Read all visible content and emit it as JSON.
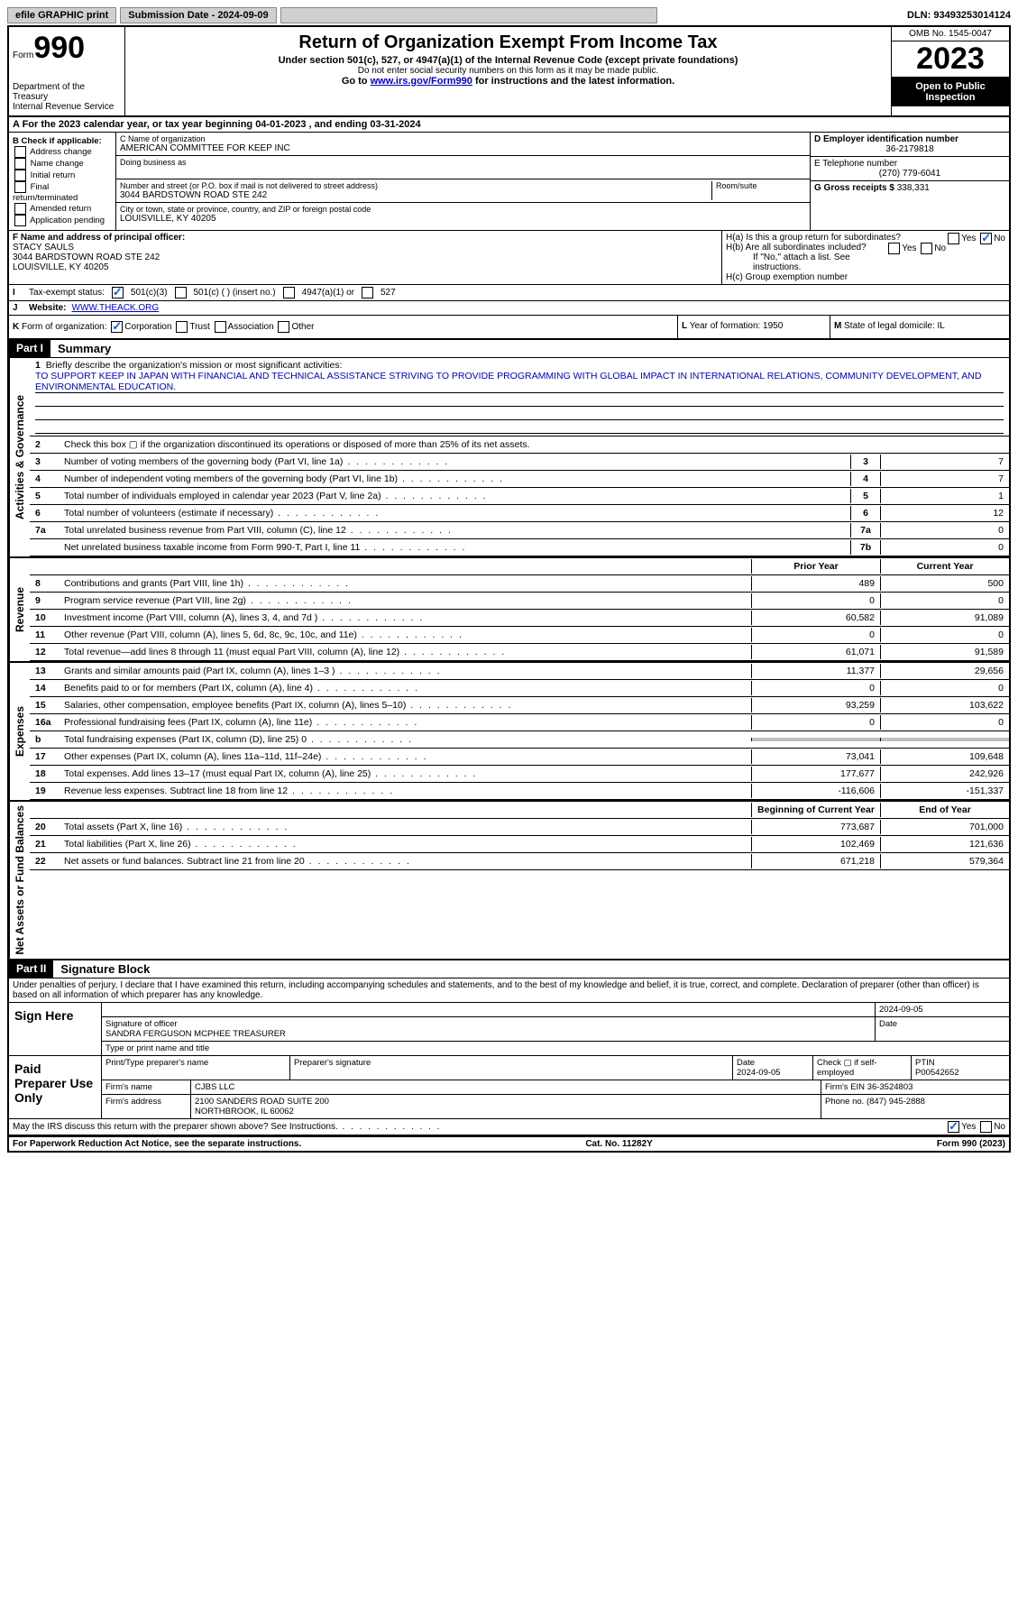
{
  "topbar": {
    "efile": "efile GRAPHIC print",
    "submission": "Submission Date - 2024-09-09",
    "dln": "DLN: 93493253014124"
  },
  "header": {
    "form_small": "Form",
    "form_big": "990",
    "dept": "Department of the Treasury",
    "irs": "Internal Revenue Service",
    "title": "Return of Organization Exempt From Income Tax",
    "sub1": "Under section 501(c), 527, or 4947(a)(1) of the Internal Revenue Code (except private foundations)",
    "sub2": "Do not enter social security numbers on this form as it may be made public.",
    "sub3_pre": "Go to ",
    "sub3_link": "www.irs.gov/Form990",
    "sub3_post": " for instructions and the latest information.",
    "omb": "OMB No. 1545-0047",
    "year": "2023",
    "inspect": "Open to Public Inspection"
  },
  "row_a": "A For the 2023 calendar year, or tax year beginning 04-01-2023   , and ending 03-31-2024",
  "box_b": {
    "label": "B Check if applicable:",
    "items": [
      "Address change",
      "Name change",
      "Initial return",
      "Final return/terminated",
      "Amended return",
      "Application pending"
    ]
  },
  "box_c": {
    "label_name": "C Name of organization",
    "name": "AMERICAN COMMITTEE FOR KEEP INC",
    "dba_label": "Doing business as",
    "street_label": "Number and street (or P.O. box if mail is not delivered to street address)",
    "street": "3044 BARDSTOWN ROAD STE 242",
    "room_label": "Room/suite",
    "city_label": "City or town, state or province, country, and ZIP or foreign postal code",
    "city": "LOUISVILLE, KY  40205"
  },
  "box_d": {
    "label": "D Employer identification number",
    "value": "36-2179818"
  },
  "box_e": {
    "label": "E Telephone number",
    "value": "(270) 779-6041"
  },
  "box_g": {
    "label": "G Gross receipts $",
    "value": "338,331"
  },
  "box_f": {
    "label": "F Name and address of principal officer:",
    "name": "STACY SAULS",
    "addr1": "3044 BARDSTOWN ROAD STE 242",
    "addr2": "LOUISVILLE, KY  40205"
  },
  "box_h": {
    "ha": "H(a)  Is this a group return for subordinates?",
    "hb": "H(b)  Are all subordinates included?",
    "hb_note": "If \"No,\" attach a list. See instructions.",
    "hc": "H(c)  Group exemption number"
  },
  "row_i": {
    "label": "I",
    "text": "Tax-exempt status:",
    "opts": [
      "501(c)(3)",
      "501(c) (  ) (insert no.)",
      "4947(a)(1) or",
      "527"
    ]
  },
  "row_j": {
    "label": "J",
    "text": "Website:",
    "value": "WWW.THEACK.ORG"
  },
  "row_k": {
    "label": "K",
    "text": "Form of organization:",
    "opts": [
      "Corporation",
      "Trust",
      "Association",
      "Other"
    ]
  },
  "row_l": {
    "label": "L",
    "text": "Year of formation: 1950"
  },
  "row_m": {
    "label": "M",
    "text": "State of legal domicile: IL"
  },
  "part1": {
    "header": "Part I",
    "title": "Summary",
    "line1_label": "1",
    "line1_text": "Briefly describe the organization's mission or most significant activities:",
    "mission": "TO SUPPORT KEEP IN JAPAN WITH FINANCIAL AND TECHNICAL ASSISTANCE STRIVING TO PROVIDE PROGRAMMING WITH GLOBAL IMPACT IN INTERNATIONAL RELATIONS, COMMUNITY DEVELOPMENT, AND ENVIRONMENTAL EDUCATION.",
    "line2": "Check this box  ▢  if the organization discontinued its operations or disposed of more than 25% of its net assets.",
    "gov_lines": [
      {
        "n": "3",
        "desc": "Number of voting members of the governing body (Part VI, line 1a)",
        "box": "3",
        "val": "7"
      },
      {
        "n": "4",
        "desc": "Number of independent voting members of the governing body (Part VI, line 1b)",
        "box": "4",
        "val": "7"
      },
      {
        "n": "5",
        "desc": "Total number of individuals employed in calendar year 2023 (Part V, line 2a)",
        "box": "5",
        "val": "1"
      },
      {
        "n": "6",
        "desc": "Total number of volunteers (estimate if necessary)",
        "box": "6",
        "val": "12"
      },
      {
        "n": "7a",
        "desc": "Total unrelated business revenue from Part VIII, column (C), line 12",
        "box": "7a",
        "val": "0"
      },
      {
        "n": "",
        "desc": "Net unrelated business taxable income from Form 990-T, Part I, line 11",
        "box": "7b",
        "val": "0"
      }
    ],
    "col_headers": {
      "prior": "Prior Year",
      "current": "Current Year"
    },
    "revenue_lines": [
      {
        "n": "8",
        "desc": "Contributions and grants (Part VIII, line 1h)",
        "prior": "489",
        "curr": "500"
      },
      {
        "n": "9",
        "desc": "Program service revenue (Part VIII, line 2g)",
        "prior": "0",
        "curr": "0"
      },
      {
        "n": "10",
        "desc": "Investment income (Part VIII, column (A), lines 3, 4, and 7d )",
        "prior": "60,582",
        "curr": "91,089"
      },
      {
        "n": "11",
        "desc": "Other revenue (Part VIII, column (A), lines 5, 6d, 8c, 9c, 10c, and 11e)",
        "prior": "0",
        "curr": "0"
      },
      {
        "n": "12",
        "desc": "Total revenue—add lines 8 through 11 (must equal Part VIII, column (A), line 12)",
        "prior": "61,071",
        "curr": "91,589"
      }
    ],
    "expense_lines": [
      {
        "n": "13",
        "desc": "Grants and similar amounts paid (Part IX, column (A), lines 1–3 )",
        "prior": "11,377",
        "curr": "29,656"
      },
      {
        "n": "14",
        "desc": "Benefits paid to or for members (Part IX, column (A), line 4)",
        "prior": "0",
        "curr": "0"
      },
      {
        "n": "15",
        "desc": "Salaries, other compensation, employee benefits (Part IX, column (A), lines 5–10)",
        "prior": "93,259",
        "curr": "103,622"
      },
      {
        "n": "16a",
        "desc": "Professional fundraising fees (Part IX, column (A), line 11e)",
        "prior": "0",
        "curr": "0"
      },
      {
        "n": "b",
        "desc": "Total fundraising expenses (Part IX, column (D), line 25) 0",
        "prior": "GRAY",
        "curr": "GRAY"
      },
      {
        "n": "17",
        "desc": "Other expenses (Part IX, column (A), lines 11a–11d, 11f–24e)",
        "prior": "73,041",
        "curr": "109,648"
      },
      {
        "n": "18",
        "desc": "Total expenses. Add lines 13–17 (must equal Part IX, column (A), line 25)",
        "prior": "177,677",
        "curr": "242,926"
      },
      {
        "n": "19",
        "desc": "Revenue less expenses. Subtract line 18 from line 12",
        "prior": "-116,606",
        "curr": "-151,337"
      }
    ],
    "net_headers": {
      "begin": "Beginning of Current Year",
      "end": "End of Year"
    },
    "net_lines": [
      {
        "n": "20",
        "desc": "Total assets (Part X, line 16)",
        "prior": "773,687",
        "curr": "701,000"
      },
      {
        "n": "21",
        "desc": "Total liabilities (Part X, line 26)",
        "prior": "102,469",
        "curr": "121,636"
      },
      {
        "n": "22",
        "desc": "Net assets or fund balances. Subtract line 21 from line 20",
        "prior": "671,218",
        "curr": "579,364"
      }
    ],
    "vert_labels": {
      "gov": "Activities & Governance",
      "rev": "Revenue",
      "exp": "Expenses",
      "net": "Net Assets or Fund Balances"
    }
  },
  "part2": {
    "header": "Part II",
    "title": "Signature Block",
    "decl": "Under penalties of perjury, I declare that I have examined this return, including accompanying schedules and statements, and to the best of my knowledge and belief, it is true, correct, and complete. Declaration of preparer (other than officer) is based on all information of which preparer has any knowledge.",
    "sign_here": "Sign Here",
    "sig_officer_label": "Signature of officer",
    "sig_date": "2024-09-05",
    "officer_name": "SANDRA FERGUSON MCPHEE TREASURER",
    "type_label": "Type or print name and title",
    "paid": "Paid Preparer Use Only",
    "prep_name_label": "Print/Type preparer's name",
    "prep_sig_label": "Preparer's signature",
    "prep_date_label": "Date",
    "prep_date": "2024-09-05",
    "check_if": "Check ▢ if self-employed",
    "ptin_label": "PTIN",
    "ptin": "P00542652",
    "firm_name_label": "Firm's name",
    "firm_name": "CJBS LLC",
    "firm_ein_label": "Firm's EIN",
    "firm_ein": "36-3524803",
    "firm_addr_label": "Firm's address",
    "firm_addr1": "2100 SANDERS ROAD SUITE 200",
    "firm_addr2": "NORTHBROOK, IL  60062",
    "phone_label": "Phone no.",
    "phone": "(847) 945-2888",
    "discuss": "May the IRS discuss this return with the preparer shown above? See Instructions."
  },
  "footer": {
    "left": "For Paperwork Reduction Act Notice, see the separate instructions.",
    "center": "Cat. No. 11282Y",
    "right": "Form 990 (2023)"
  }
}
